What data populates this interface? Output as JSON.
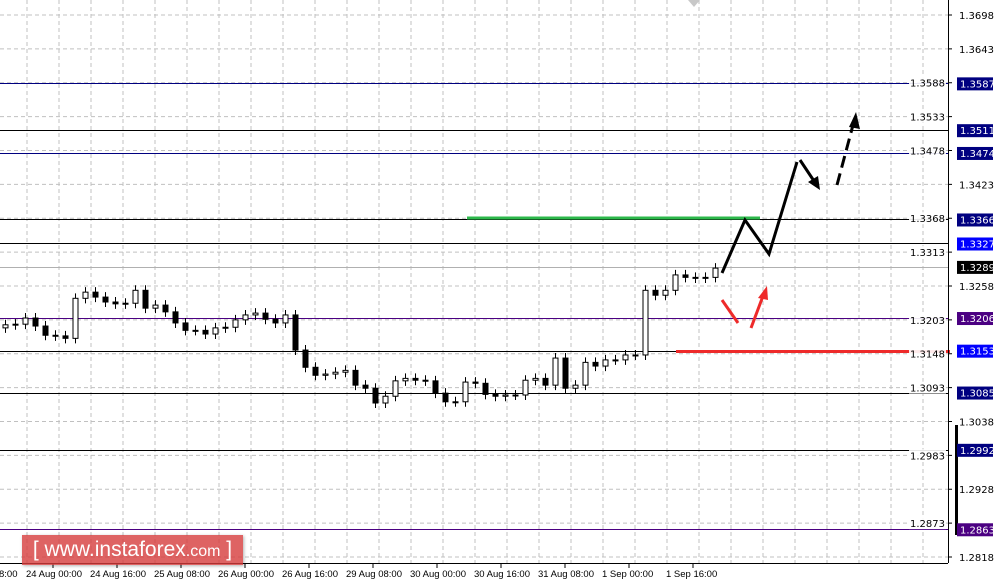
{
  "chart_data": {
    "type": "candlestick",
    "title": "",
    "y_ticks": [
      "1.3698",
      "1.3643",
      "1.3588",
      "1.3533",
      "1.3478",
      "1.3423",
      "1.3368",
      "1.3313",
      "1.3258",
      "1.3203",
      "1.3148",
      "1.3093",
      "1.3038",
      "1.2983",
      "1.2928",
      "1.2873",
      "1.2818"
    ],
    "x_ticks": [
      "8:00",
      "24 Aug 00:00",
      "24 Aug 16:00",
      "25 Aug 08:00",
      "26 Aug 00:00",
      "26 Aug 16:00",
      "29 Aug 08:00",
      "30 Aug 00:00",
      "30 Aug 16:00",
      "31 Aug 08:00",
      "1 Sep 00:00",
      "1 Sep 16:00"
    ],
    "ylim": [
      1.2789,
      1.3722
    ],
    "grid": true,
    "first_open": 1.319,
    "closes": [
      1.3195,
      1.3196,
      1.3206,
      1.3193,
      1.3178,
      1.3177,
      1.3173,
      1.3238,
      1.3248,
      1.324,
      1.3232,
      1.3229,
      1.323,
      1.3251,
      1.3222,
      1.3227,
      1.3216,
      1.3198,
      1.3186,
      1.3186,
      1.318,
      1.319,
      1.3191,
      1.3203,
      1.3211,
      1.3214,
      1.3204,
      1.3198,
      1.3211,
      1.3154,
      1.3126,
      1.3113,
      1.3115,
      1.3118,
      1.3121,
      1.3097,
      1.3092,
      1.3068,
      1.3079,
      1.3104,
      1.3108,
      1.3105,
      1.3104,
      1.3084,
      1.307,
      1.307,
      1.3102,
      1.31,
      1.3082,
      1.3079,
      1.3081,
      1.3081,
      1.3105,
      1.3108,
      1.3097,
      1.3141,
      1.3092,
      1.3097,
      1.3134,
      1.3128,
      1.3138,
      1.3138,
      1.3146,
      1.3146,
      1.3251,
      1.3243,
      1.3251,
      1.3276,
      1.3272,
      1.3271,
      1.3272,
      1.3287
    ],
    "levels": [
      {
        "price": "1.3587",
        "line_color": "#000080",
        "label_color": "#000080"
      },
      {
        "price": "1.3511",
        "line_color": "#000000",
        "label_color": "#000080"
      },
      {
        "price": "1.3474",
        "line_color": "#000080",
        "label_color": "#000080"
      },
      {
        "price": "1.3366",
        "line_color": "#000000",
        "label_color": "#000080"
      },
      {
        "price": "1.3327",
        "line_color": "#000000",
        "label_color": "#0000ff"
      },
      {
        "price": "1.3289",
        "line_color": "#b0b0b0",
        "label_color": "#000000"
      },
      {
        "price": "1.3206",
        "line_color": "#4b0082",
        "label_color": "#4b0082"
      },
      {
        "price": "1.3153",
        "line_color": "#000000",
        "label_color": "#0000ff"
      },
      {
        "price": "1.3085",
        "line_color": "#000000",
        "label_color": "#000080"
      },
      {
        "price": "1.2992",
        "line_color": "#000000",
        "label_color": "#000080"
      },
      {
        "price": "1.2863",
        "line_color": "#4b0082",
        "label_color": "#4b0082"
      }
    ],
    "resistance_color": "#2db84b",
    "support_color": "#ee2a2a"
  },
  "watermark": {
    "text": "www.instaforex",
    "suffix": ".com"
  }
}
